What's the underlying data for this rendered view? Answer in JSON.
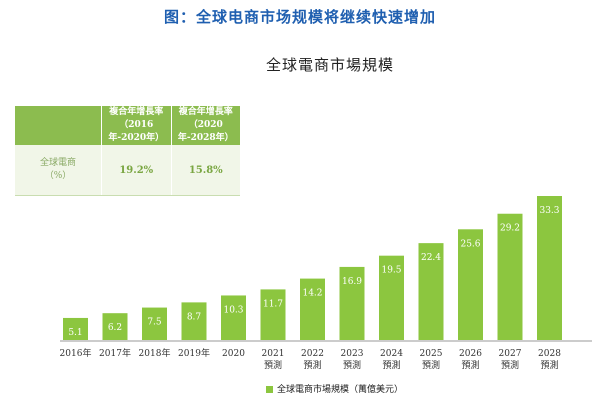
{
  "page": {
    "title": "图：全球电商市场规模将继续快速增加"
  },
  "table": {
    "headers": [
      "",
      "複合年增長率\n（2016年-2020年）",
      "複合年增長率\n（2020年-2028年）"
    ],
    "row": {
      "label": "全球電商\n（%）",
      "values": [
        "19.2%",
        "15.8%"
      ]
    }
  },
  "chart_data": {
    "type": "bar",
    "title": "全球電商市場規模",
    "categories": [
      "2016年",
      "2017年",
      "2018年",
      "2019年",
      "2020",
      "2021\n預測",
      "2022\n預測",
      "2023\n預測",
      "2024\n預測",
      "2025\n預測",
      "2026\n預測",
      "2027\n預測",
      "2028\n預測"
    ],
    "series": [
      {
        "name": "全球電商市場規模（萬億美元）",
        "values": [
          5.1,
          6.2,
          7.5,
          8.7,
          10.3,
          11.7,
          14.2,
          16.9,
          19.5,
          22.4,
          25.6,
          29.2,
          33.3
        ],
        "color": "#8cc63f"
      }
    ],
    "ylim": [
      0,
      35
    ],
    "grid": false,
    "legend": "bottom"
  }
}
